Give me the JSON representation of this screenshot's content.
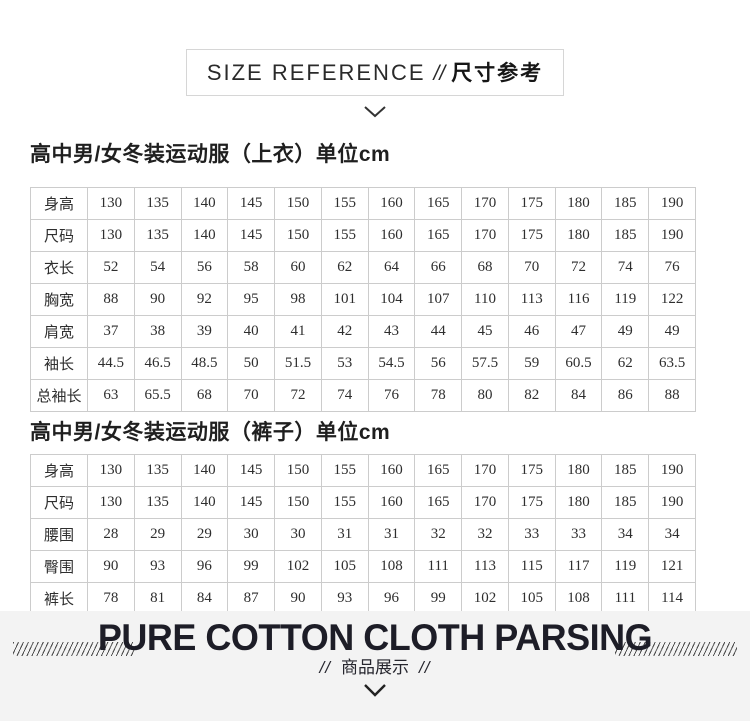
{
  "header": {
    "title_en": "SIZE REFERENCE",
    "separator": "//",
    "title_zh": "尺寸参考"
  },
  "tables": [
    {
      "title": "高中男/女冬装运动服（上衣）单位cm",
      "rows": [
        {
          "label": "身高",
          "values": [
            "130",
            "135",
            "140",
            "145",
            "150",
            "155",
            "160",
            "165",
            "170",
            "175",
            "180",
            "185",
            "190"
          ]
        },
        {
          "label": "尺码",
          "values": [
            "130",
            "135",
            "140",
            "145",
            "150",
            "155",
            "160",
            "165",
            "170",
            "175",
            "180",
            "185",
            "190"
          ]
        },
        {
          "label": "衣长",
          "values": [
            "52",
            "54",
            "56",
            "58",
            "60",
            "62",
            "64",
            "66",
            "68",
            "70",
            "72",
            "74",
            "76"
          ]
        },
        {
          "label": "胸宽",
          "values": [
            "88",
            "90",
            "92",
            "95",
            "98",
            "101",
            "104",
            "107",
            "110",
            "113",
            "116",
            "119",
            "122"
          ]
        },
        {
          "label": "肩宽",
          "values": [
            "37",
            "38",
            "39",
            "40",
            "41",
            "42",
            "43",
            "44",
            "45",
            "46",
            "47",
            "49",
            "49"
          ]
        },
        {
          "label": "袖长",
          "values": [
            "44.5",
            "46.5",
            "48.5",
            "50",
            "51.5",
            "53",
            "54.5",
            "56",
            "57.5",
            "59",
            "60.5",
            "62",
            "63.5"
          ]
        },
        {
          "label": "总袖长",
          "values": [
            "63",
            "65.5",
            "68",
            "70",
            "72",
            "74",
            "76",
            "78",
            "80",
            "82",
            "84",
            "86",
            "88"
          ]
        }
      ]
    },
    {
      "title": "高中男/女冬装运动服（裤子）单位cm",
      "rows": [
        {
          "label": "身高",
          "values": [
            "130",
            "135",
            "140",
            "145",
            "150",
            "155",
            "160",
            "165",
            "170",
            "175",
            "180",
            "185",
            "190"
          ]
        },
        {
          "label": "尺码",
          "values": [
            "130",
            "135",
            "140",
            "145",
            "150",
            "155",
            "160",
            "165",
            "170",
            "175",
            "180",
            "185",
            "190"
          ]
        },
        {
          "label": "腰围",
          "values": [
            "28",
            "29",
            "29",
            "30",
            "30",
            "31",
            "31",
            "32",
            "32",
            "33",
            "33",
            "34",
            "34"
          ]
        },
        {
          "label": "臀围",
          "values": [
            "90",
            "93",
            "96",
            "99",
            "102",
            "105",
            "108",
            "111",
            "113",
            "115",
            "117",
            "119",
            "121"
          ]
        },
        {
          "label": "裤长",
          "values": [
            "78",
            "81",
            "84",
            "87",
            "90",
            "93",
            "96",
            "99",
            "102",
            "105",
            "108",
            "111",
            "114"
          ]
        }
      ]
    }
  ],
  "footer": {
    "title": "PURE COTTON CLOTH PARSING",
    "subtitle_left_slashes": "//",
    "subtitle_text": "商品展示",
    "subtitle_right_slashes": "//"
  },
  "colors": {
    "table_border": "#cccccc",
    "banner_background": "#f3f3f3",
    "banner_title_text": "#1d1d27",
    "body_text": "#2e2e2e"
  }
}
